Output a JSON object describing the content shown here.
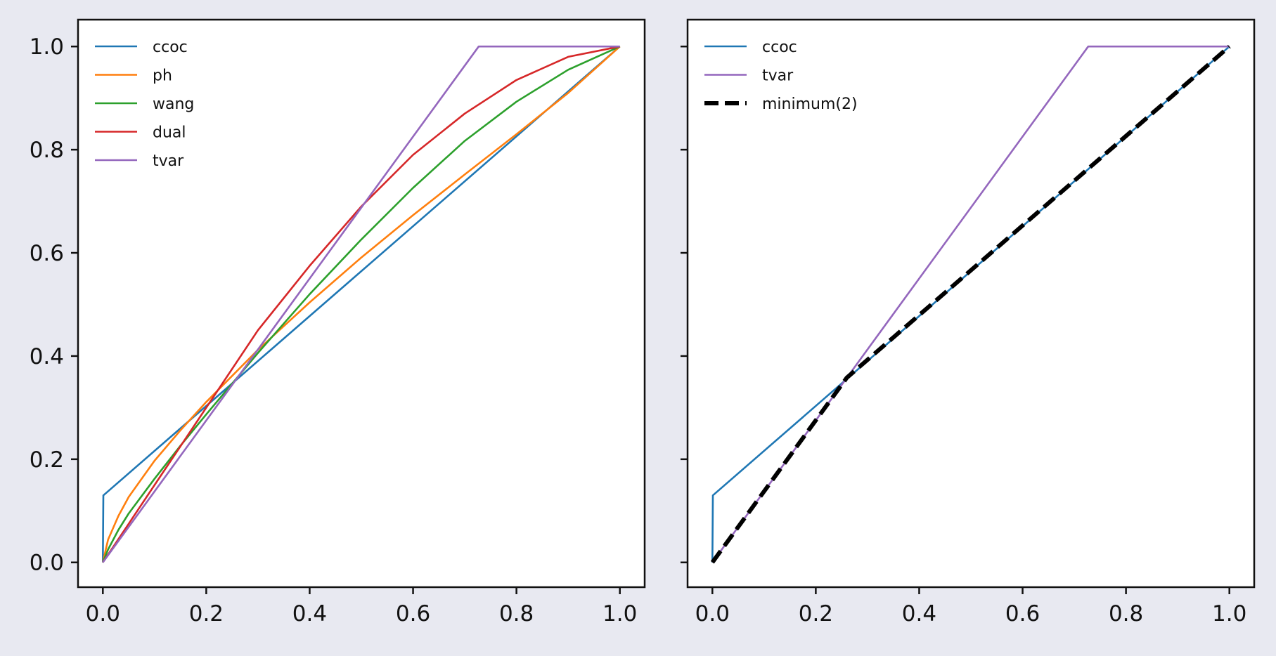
{
  "chart_data": [
    {
      "type": "line",
      "title": "",
      "xlabel": "",
      "ylabel": "",
      "xlim": [
        -0.048,
        1.048
      ],
      "ylim": [
        -0.048,
        1.052
      ],
      "xticks": [
        "0.0",
        "0.2",
        "0.4",
        "0.6",
        "0.8",
        "1.0"
      ],
      "yticks": [
        "0.0",
        "0.2",
        "0.4",
        "0.6",
        "0.8",
        "1.0"
      ],
      "grid": false,
      "legend": "top-left",
      "series": [
        {
          "name": "ccoc",
          "color": "#1f77b4",
          "style": "solid",
          "x": [
            0,
            0.001,
            1
          ],
          "y": [
            0,
            0.13,
            1
          ]
        },
        {
          "name": "ph",
          "color": "#ff7f0e",
          "style": "solid",
          "x": [
            0,
            0.01,
            0.03,
            0.05,
            0.1,
            0.15,
            0.2,
            0.3,
            0.4,
            0.5,
            0.6,
            0.7,
            0.8,
            0.9,
            1.0
          ],
          "y": [
            0,
            0.044,
            0.09,
            0.127,
            0.197,
            0.256,
            0.311,
            0.412,
            0.504,
            0.591,
            0.673,
            0.752,
            0.83,
            0.91,
            1.0
          ]
        },
        {
          "name": "wang",
          "color": "#2ca02c",
          "style": "solid",
          "x": [
            0,
            0.01,
            0.03,
            0.05,
            0.1,
            0.15,
            0.2,
            0.3,
            0.4,
            0.5,
            0.6,
            0.7,
            0.8,
            0.9,
            1.0
          ],
          "y": [
            0,
            0.025,
            0.063,
            0.095,
            0.162,
            0.226,
            0.287,
            0.406,
            0.52,
            0.626,
            0.726,
            0.817,
            0.893,
            0.955,
            1.0
          ]
        },
        {
          "name": "dual",
          "color": "#d62728",
          "style": "solid",
          "x": [
            0,
            0.05,
            0.1,
            0.2,
            0.3,
            0.4,
            0.5,
            0.6,
            0.7,
            0.8,
            0.9,
            1.0
          ],
          "y": [
            0,
            0.075,
            0.15,
            0.3,
            0.45,
            0.575,
            0.69,
            0.79,
            0.87,
            0.935,
            0.98,
            1.0
          ]
        },
        {
          "name": "tvar",
          "color": "#9467bd",
          "style": "solid",
          "x": [
            0,
            0.727,
            1
          ],
          "y": [
            0,
            1,
            1
          ]
        }
      ]
    },
    {
      "type": "line",
      "title": "",
      "xlabel": "",
      "ylabel": "",
      "xlim": [
        -0.048,
        1.048
      ],
      "ylim": [
        -0.048,
        1.052
      ],
      "xticks": [
        "0.0",
        "0.2",
        "0.4",
        "0.6",
        "0.8",
        "1.0"
      ],
      "yticks": [
        "0.0",
        "0.2",
        "0.4",
        "0.6",
        "0.8",
        "1.0"
      ],
      "grid": false,
      "legend": "top-left",
      "series": [
        {
          "name": "ccoc",
          "color": "#1f77b4",
          "style": "solid",
          "x": [
            0,
            0.001,
            1
          ],
          "y": [
            0,
            0.13,
            1
          ]
        },
        {
          "name": "tvar",
          "color": "#9467bd",
          "style": "solid",
          "x": [
            0,
            0.727,
            1
          ],
          "y": [
            0,
            1,
            1
          ]
        },
        {
          "name": "minimum(2)",
          "color": "#000000",
          "style": "dashed",
          "x": [
            0,
            0.26,
            1
          ],
          "y": [
            0,
            0.358,
            1
          ]
        }
      ]
    }
  ]
}
